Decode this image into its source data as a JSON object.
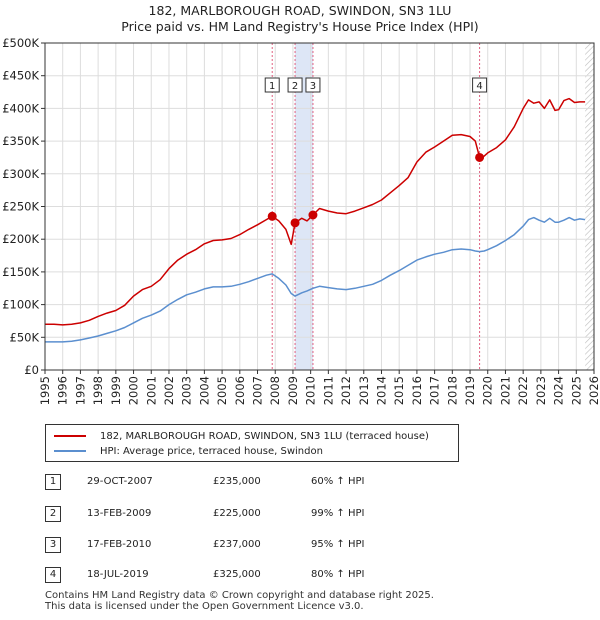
{
  "title": {
    "line1": "182, MARLBOROUGH ROAD, SWINDON, SN3 1LU",
    "line2": "Price paid vs. HM Land Registry's House Price Index (HPI)"
  },
  "legend": {
    "property_label": "182, MARLBOROUGH ROAD, SWINDON, SN3 1LU (terraced house)",
    "hpi_label": "HPI: Average price, terraced house, Swindon"
  },
  "colors": {
    "property": "#cc0000",
    "hpi": "#5b8fcf",
    "shade": "#dde6f6",
    "marker_line": "#e06080",
    "grid": "#dddddd"
  },
  "sales": [
    {
      "num": "1",
      "date": "29-OCT-2007",
      "price": "£235,000",
      "hpi": "60% ↑ HPI"
    },
    {
      "num": "2",
      "date": "13-FEB-2009",
      "price": "£225,000",
      "hpi": "99% ↑ HPI"
    },
    {
      "num": "3",
      "date": "17-FEB-2010",
      "price": "£237,000",
      "hpi": "95% ↑ HPI"
    },
    {
      "num": "4",
      "date": "18-JUL-2019",
      "price": "£325,000",
      "hpi": "80% ↑ HPI"
    }
  ],
  "footer": {
    "line1": "Contains HM Land Registry data © Crown copyright and database right 2025.",
    "line2": "This data is licensed under the Open Government Licence v3.0."
  },
  "chart_data": {
    "type": "line",
    "title": "182, MARLBOROUGH ROAD, SWINDON, SN3 1LU — Price paid vs. HM Land Registry's House Price Index (HPI)",
    "xlim": [
      1995,
      2026
    ],
    "ylim": [
      0,
      500000
    ],
    "x_ticks": [
      "1995",
      "1996",
      "1997",
      "1998",
      "1999",
      "2000",
      "2001",
      "2002",
      "2003",
      "2004",
      "2005",
      "2006",
      "2007",
      "2008",
      "2009",
      "2010",
      "2011",
      "2012",
      "2013",
      "2014",
      "2015",
      "2016",
      "2017",
      "2018",
      "2019",
      "2020",
      "2021",
      "2022",
      "2023",
      "2024",
      "2025",
      "2026"
    ],
    "y_ticks": [
      {
        "value": 0,
        "label": "£0"
      },
      {
        "value": 50000,
        "label": "£50K"
      },
      {
        "value": 100000,
        "label": "£100K"
      },
      {
        "value": 150000,
        "label": "£150K"
      },
      {
        "value": 200000,
        "label": "£200K"
      },
      {
        "value": 250000,
        "label": "£250K"
      },
      {
        "value": 300000,
        "label": "£300K"
      },
      {
        "value": 350000,
        "label": "£350K"
      },
      {
        "value": 400000,
        "label": "£400K"
      },
      {
        "value": 450000,
        "label": "£450K"
      },
      {
        "value": 500000,
        "label": "£500K"
      }
    ],
    "series": [
      {
        "name": "182, MARLBOROUGH ROAD, SWINDON, SN3 1LU (terraced house)",
        "x": [
          1995.0,
          1995.5,
          1996.0,
          1996.5,
          1997.0,
          1997.5,
          1998.0,
          1998.5,
          1999.0,
          1999.5,
          2000.0,
          2000.5,
          2001.0,
          2001.5,
          2002.0,
          2002.5,
          2003.0,
          2003.5,
          2004.0,
          2004.5,
          2005.0,
          2005.5,
          2006.0,
          2006.5,
          2007.0,
          2007.5,
          2007.83,
          2008.2,
          2008.6,
          2008.9,
          2009.12,
          2009.5,
          2009.8,
          2010.13,
          2010.5,
          2011.0,
          2011.5,
          2012.0,
          2012.5,
          2013.0,
          2013.5,
          2014.0,
          2014.5,
          2015.0,
          2015.5,
          2016.0,
          2016.5,
          2017.0,
          2017.5,
          2018.0,
          2018.5,
          2019.0,
          2019.3,
          2019.54,
          2019.8,
          2020.0,
          2020.5,
          2021.0,
          2021.5,
          2022.0,
          2022.3,
          2022.6,
          2022.9,
          2023.2,
          2023.5,
          2023.8,
          2024.0,
          2024.3,
          2024.6,
          2024.9,
          2025.2,
          2025.5
        ],
        "values": [
          70000,
          70000,
          69000,
          70000,
          72000,
          76000,
          82000,
          87000,
          91000,
          99000,
          113000,
          123000,
          128000,
          138000,
          155000,
          168000,
          177000,
          184000,
          193000,
          198000,
          199000,
          201000,
          207000,
          215000,
          222000,
          230000,
          235000,
          228000,
          215000,
          192000,
          225000,
          232000,
          228000,
          237000,
          247000,
          243000,
          240000,
          239000,
          243000,
          248000,
          253000,
          260000,
          271000,
          282000,
          294000,
          318000,
          333000,
          341000,
          350000,
          359000,
          360000,
          357000,
          350000,
          325000,
          327000,
          332000,
          340000,
          352000,
          372000,
          400000,
          413000,
          408000,
          410000,
          400000,
          413000,
          397000,
          398000,
          412000,
          415000,
          409000,
          410000,
          410000
        ]
      },
      {
        "name": "HPI: Average price, terraced house, Swindon",
        "x": [
          1995.0,
          1995.5,
          1996.0,
          1996.5,
          1997.0,
          1997.5,
          1998.0,
          1998.5,
          1999.0,
          1999.5,
          2000.0,
          2000.5,
          2001.0,
          2001.5,
          2002.0,
          2002.5,
          2003.0,
          2003.5,
          2004.0,
          2004.5,
          2005.0,
          2005.5,
          2006.0,
          2006.5,
          2007.0,
          2007.5,
          2007.83,
          2008.2,
          2008.6,
          2008.9,
          2009.12,
          2009.5,
          2009.8,
          2010.13,
          2010.5,
          2011.0,
          2011.5,
          2012.0,
          2012.5,
          2013.0,
          2013.5,
          2014.0,
          2014.5,
          2015.0,
          2015.5,
          2016.0,
          2016.5,
          2017.0,
          2017.5,
          2018.0,
          2018.5,
          2019.0,
          2019.3,
          2019.54,
          2019.8,
          2020.0,
          2020.5,
          2021.0,
          2021.5,
          2022.0,
          2022.3,
          2022.6,
          2022.9,
          2023.2,
          2023.5,
          2023.8,
          2024.0,
          2024.3,
          2024.6,
          2024.9,
          2025.2,
          2025.5
        ],
        "values": [
          43000,
          43000,
          43000,
          44000,
          46000,
          49000,
          52000,
          56000,
          60000,
          65000,
          72000,
          79000,
          84000,
          90000,
          100000,
          108000,
          115000,
          119000,
          124000,
          127000,
          127000,
          128000,
          131000,
          135000,
          140000,
          145000,
          147000,
          140000,
          130000,
          117000,
          113000,
          118000,
          121000,
          125000,
          128000,
          126000,
          124000,
          123000,
          125000,
          128000,
          131000,
          137000,
          145000,
          152000,
          160000,
          168000,
          173000,
          177000,
          180000,
          184000,
          185000,
          184000,
          182000,
          181000,
          182000,
          184000,
          190000,
          198000,
          207000,
          220000,
          230000,
          233000,
          229000,
          226000,
          232000,
          226000,
          226000,
          229000,
          233000,
          229000,
          231000,
          230000
        ]
      }
    ],
    "sale_markers": [
      {
        "label": "1",
        "x": 2007.83,
        "y": 235000
      },
      {
        "label": "2",
        "x": 2009.12,
        "y": 225000
      },
      {
        "label": "3",
        "x": 2010.13,
        "y": 237000
      },
      {
        "label": "4",
        "x": 2019.54,
        "y": 325000
      }
    ],
    "shaded_period": [
      2009.12,
      2010.13
    ],
    "hatched_from": 2025.5,
    "grid": true,
    "legend_position": "below"
  }
}
